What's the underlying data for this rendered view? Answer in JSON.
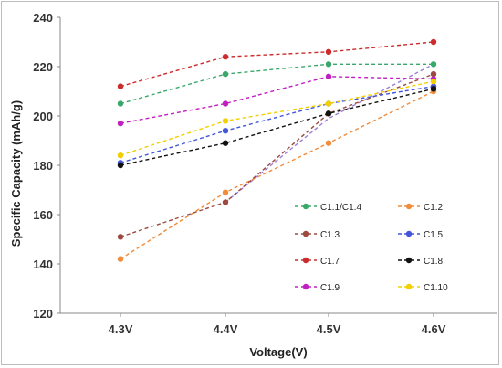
{
  "chart_data": {
    "type": "line",
    "title": "",
    "xlabel": "Voltage(V)",
    "ylabel": "Specific Capacity (mAh/g)",
    "categories": [
      "4.3V",
      "4.4V",
      "4.5V",
      "4.6V"
    ],
    "ylim": [
      120,
      240
    ],
    "yticks": [
      120,
      140,
      160,
      180,
      200,
      220,
      240
    ],
    "grid": false,
    "legend_placement": "bottom-right",
    "series": [
      {
        "name": "C1.1/C1.4",
        "color": "#3aa86b",
        "values": [
          205,
          217,
          221,
          221
        ]
      },
      {
        "name": "C1.2",
        "color": "#f08c3a",
        "values": [
          142,
          169,
          189,
          210
        ]
      },
      {
        "name": "C1.3",
        "color": "#9c4a40",
        "values": [
          151,
          165,
          201,
          217
        ]
      },
      {
        "name": "C1.5",
        "color": "#4455d9",
        "values": [
          181,
          194,
          205,
          212
        ]
      },
      {
        "name": "C1.7",
        "color": "#cc2b2b",
        "values": [
          212,
          224,
          226,
          230
        ]
      },
      {
        "name": "C1.8",
        "color": "#111111",
        "values": [
          180,
          189,
          201,
          211
        ]
      },
      {
        "name": "C1.9",
        "color": "#c020c0",
        "values": [
          197,
          205,
          216,
          215
        ]
      },
      {
        "name": "C1.10",
        "color": "#f2d000",
        "values": [
          184,
          198,
          205,
          214
        ]
      }
    ],
    "extra_lines": [
      {
        "color": "#9b7fd9",
        "values": [
          null,
          165,
          199,
          221
        ],
        "note": "unlabeled purple dashed segment"
      }
    ]
  }
}
